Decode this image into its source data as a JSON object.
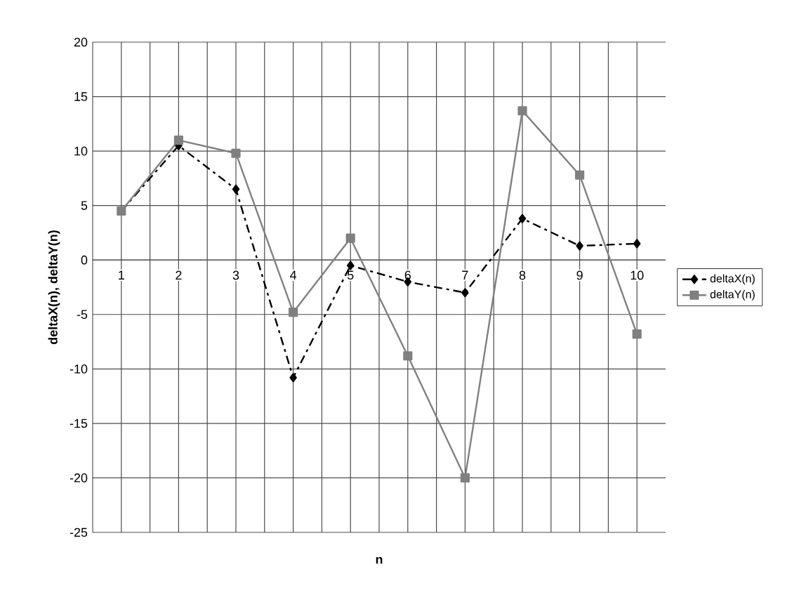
{
  "chart_data": {
    "type": "line",
    "xlabel": "n",
    "ylabel": "deltaX(n), deltaY(n)",
    "categories": [
      "1",
      "2",
      "3",
      "4",
      "5",
      "6",
      "7",
      "8",
      "9",
      "10"
    ],
    "series": [
      {
        "name": "deltaX(n)",
        "color": "#000000",
        "marker": "diamond",
        "line_style": "dashed",
        "values": [
          4.5,
          10.5,
          6.5,
          -10.8,
          -0.5,
          -2,
          -3,
          3.8,
          1.3,
          1.5
        ]
      },
      {
        "name": "deltaY(n)",
        "color": "#808080",
        "marker": "square",
        "line_style": "solid",
        "values": [
          4.5,
          11,
          9.8,
          -4.8,
          2,
          -8.8,
          -20,
          13.7,
          7.8,
          -6.8
        ]
      }
    ],
    "ylim": [
      -25,
      20
    ],
    "yticks": [
      -25,
      -20,
      -15,
      -10,
      -5,
      0,
      5,
      10,
      15,
      20
    ],
    "grid": true,
    "legend": "right"
  }
}
